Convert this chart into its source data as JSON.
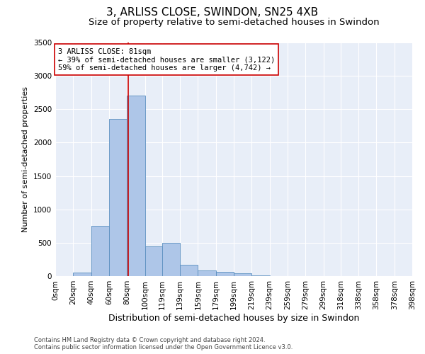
{
  "title": "3, ARLISS CLOSE, SWINDON, SN25 4XB",
  "subtitle": "Size of property relative to semi-detached houses in Swindon",
  "xlabel": "Distribution of semi-detached houses by size in Swindon",
  "ylabel": "Number of semi-detached properties",
  "footer_line1": "Contains HM Land Registry data © Crown copyright and database right 2024.",
  "footer_line2": "Contains public sector information licensed under the Open Government Licence v3.0.",
  "annotation_line1": "3 ARLISS CLOSE: 81sqm",
  "annotation_line2": "← 39% of semi-detached houses are smaller (3,122)",
  "annotation_line3": "59% of semi-detached houses are larger (4,742) →",
  "property_size": 81,
  "bar_bins": [
    0,
    20,
    40,
    60,
    80,
    100,
    119,
    139,
    159,
    179,
    199,
    219,
    239,
    259,
    279,
    299,
    318,
    338,
    358,
    378,
    398
  ],
  "bar_heights": [
    0,
    50,
    750,
    2350,
    2700,
    450,
    500,
    175,
    80,
    60,
    40,
    10,
    5,
    0,
    0,
    0,
    0,
    0,
    0,
    0
  ],
  "bar_color": "#aec6e8",
  "bar_edge_color": "#5a8fc0",
  "red_line_color": "#cc0000",
  "annotation_box_edge_color": "#cc0000",
  "background_color": "#e8eef8",
  "ylim": [
    0,
    3500
  ],
  "yticks": [
    0,
    500,
    1000,
    1500,
    2000,
    2500,
    3000,
    3500
  ],
  "title_fontsize": 11,
  "subtitle_fontsize": 9.5,
  "xlabel_fontsize": 9,
  "ylabel_fontsize": 8,
  "tick_fontsize": 7.5
}
